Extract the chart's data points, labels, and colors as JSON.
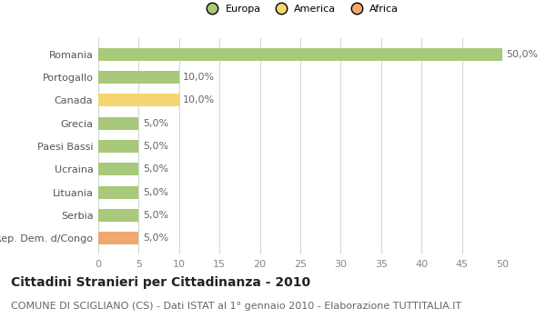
{
  "categories": [
    "Rep. Dem. d/Congo",
    "Serbia",
    "Lituania",
    "Ucraina",
    "Paesi Bassi",
    "Grecia",
    "Canada",
    "Portogallo",
    "Romania"
  ],
  "values": [
    5.0,
    5.0,
    5.0,
    5.0,
    5.0,
    5.0,
    10.0,
    10.0,
    50.0
  ],
  "colors": [
    "#f0a870",
    "#a8c87a",
    "#a8c87a",
    "#a8c87a",
    "#a8c87a",
    "#a8c87a",
    "#f5d570",
    "#a8c87a",
    "#a8c87a"
  ],
  "legend_labels": [
    "Europa",
    "America",
    "Africa"
  ],
  "legend_colors": [
    "#a8c87a",
    "#f5d570",
    "#f0a870"
  ],
  "xlim": [
    0,
    50
  ],
  "xticks": [
    0,
    5,
    10,
    15,
    20,
    25,
    30,
    35,
    40,
    45,
    50
  ],
  "title": "Cittadini Stranieri per Cittadinanza - 2010",
  "subtitle": "COMUNE DI SCIGLIANO (CS) - Dati ISTAT al 1° gennaio 2010 - Elaborazione TUTTITALIA.IT",
  "title_fontsize": 10,
  "subtitle_fontsize": 8,
  "label_fontsize": 8,
  "tick_fontsize": 8,
  "background_color": "#ffffff",
  "grid_color": "#ccddcc",
  "bar_height": 0.55
}
